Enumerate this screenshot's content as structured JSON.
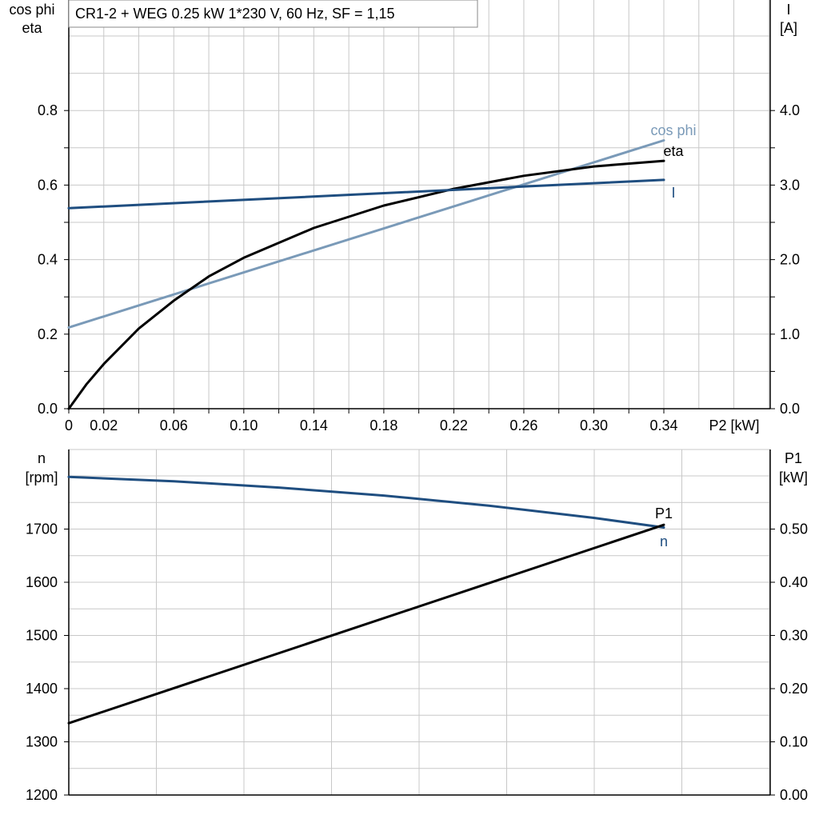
{
  "chart_data": [
    {
      "type": "line",
      "title": "CR1-2 + WEG   0.25 kW   1*230 V, 60 Hz, SF = 1,15",
      "xlabel": "P2 [kW]",
      "x_ticks": [
        "0",
        "0.02",
        "0.06",
        "0.10",
        "0.14",
        "0.18",
        "0.22",
        "0.26",
        "0.30",
        "0.34"
      ],
      "xlim": [
        0,
        0.34
      ],
      "ylabel_left": [
        "cos phi",
        "eta"
      ],
      "ylim_left": [
        0,
        1.0
      ],
      "y_ticks_left": [
        "0.0",
        "0.2",
        "0.4",
        "0.6",
        "0.8"
      ],
      "ylabel_right": [
        "I",
        "[A]"
      ],
      "ylim_right": [
        0,
        5.0
      ],
      "y_ticks_right": [
        "0.0",
        "1.0",
        "2.0",
        "3.0",
        "4.0"
      ],
      "grid": true,
      "series": [
        {
          "name": "cos phi",
          "axis": "left",
          "color": "#7a9ab8",
          "x": [
            0,
            0.34
          ],
          "y": [
            0.218,
            0.72
          ]
        },
        {
          "name": "eta",
          "axis": "left",
          "color": "#000000",
          "x": [
            0,
            0.01,
            0.02,
            0.04,
            0.06,
            0.08,
            0.1,
            0.14,
            0.18,
            0.22,
            0.26,
            0.3,
            0.34
          ],
          "y": [
            0.0,
            0.065,
            0.12,
            0.215,
            0.29,
            0.355,
            0.405,
            0.485,
            0.545,
            0.59,
            0.625,
            0.65,
            0.665
          ]
        },
        {
          "name": "I",
          "axis": "right",
          "color": "#1f4e80",
          "x": [
            0,
            0.34
          ],
          "y": [
            2.69,
            3.07
          ]
        }
      ]
    },
    {
      "type": "line",
      "ylabel_left": [
        "n",
        "[rpm]"
      ],
      "ylim_left": [
        1200,
        1800
      ],
      "y_ticks_left": [
        "1200",
        "1300",
        "1400",
        "1500",
        "1600",
        "1700"
      ],
      "ylabel_right": [
        "P1",
        "[kW]"
      ],
      "ylim_right": [
        0,
        0.6
      ],
      "y_ticks_right": [
        "0.00",
        "0.10",
        "0.20",
        "0.30",
        "0.40",
        "0.50"
      ],
      "xlim": [
        0,
        0.34
      ],
      "grid": true,
      "series": [
        {
          "name": "n",
          "axis": "left",
          "color": "#1f4e80",
          "x": [
            0,
            0.06,
            0.12,
            0.18,
            0.24,
            0.3,
            0.34
          ],
          "y": [
            1798,
            1790,
            1778,
            1763,
            1744,
            1721,
            1703
          ]
        },
        {
          "name": "P1",
          "axis": "right",
          "color": "#000000",
          "x": [
            0,
            0.34
          ],
          "y": [
            0.135,
            0.508
          ]
        }
      ]
    }
  ]
}
